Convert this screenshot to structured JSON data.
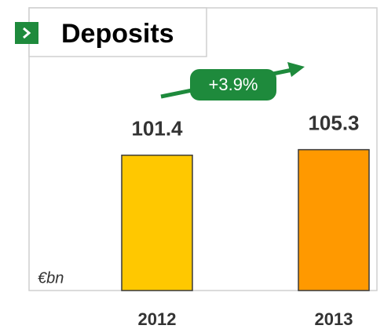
{
  "chart_data": {
    "type": "bar",
    "title": "Deposits",
    "unit_label": "€bn",
    "annotation": "+3.9%",
    "categories": [
      "2012",
      "2013"
    ],
    "values": [
      101.4,
      105.3
    ],
    "colors": [
      "#ffc800",
      "#ff9900"
    ],
    "ylim": [
      6,
      130
    ]
  }
}
